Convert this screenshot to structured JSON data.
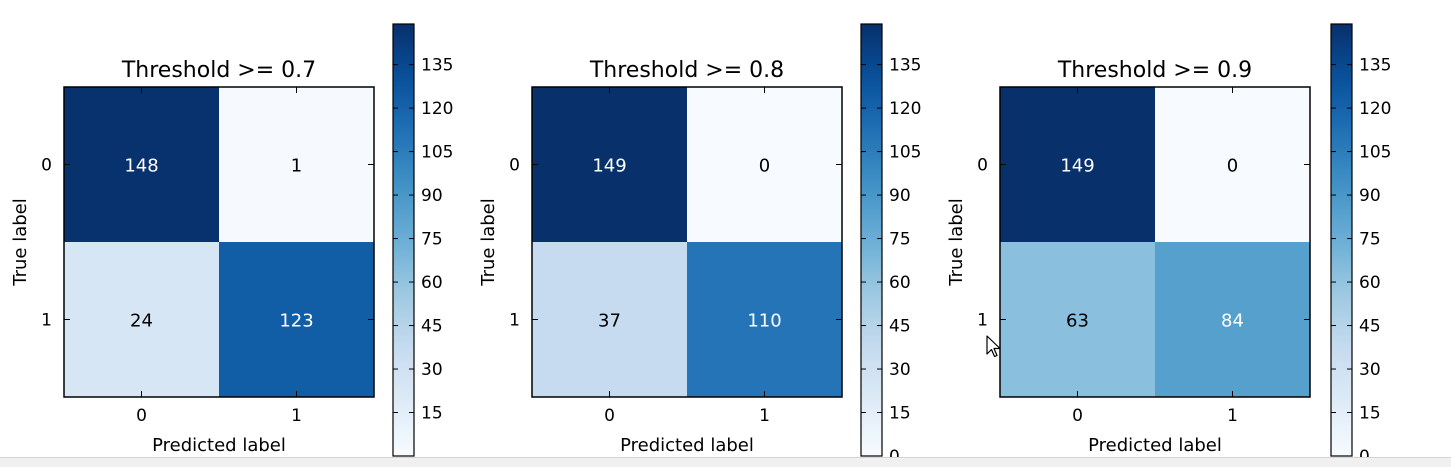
{
  "chart_data": [
    {
      "type": "heatmap",
      "title": "Threshold >= 0.7",
      "xlabel": "Predicted label",
      "ylabel": "True label",
      "x_ticks": [
        "0",
        "1"
      ],
      "y_ticks": [
        "0",
        "1"
      ],
      "values": [
        [
          148,
          1
        ],
        [
          24,
          123
        ]
      ],
      "colormap": "Blues",
      "colorbar": {
        "min": 0,
        "max": 149,
        "ticks": [
          15,
          30,
          45,
          60,
          75,
          90,
          105,
          120,
          135
        ]
      }
    },
    {
      "type": "heatmap",
      "title": "Threshold >= 0.8",
      "xlabel": "Predicted label",
      "ylabel": "True label",
      "x_ticks": [
        "0",
        "1"
      ],
      "y_ticks": [
        "0",
        "1"
      ],
      "values": [
        [
          149,
          0
        ],
        [
          37,
          110
        ]
      ],
      "colormap": "Blues",
      "colorbar": {
        "min": 0,
        "max": 149,
        "ticks": [
          0,
          15,
          30,
          45,
          60,
          75,
          90,
          105,
          120,
          135
        ]
      }
    },
    {
      "type": "heatmap",
      "title": "Threshold >= 0.9",
      "xlabel": "Predicted label",
      "ylabel": "True label",
      "x_ticks": [
        "0",
        "1"
      ],
      "y_ticks": [
        "0",
        "1"
      ],
      "values": [
        [
          149,
          0
        ],
        [
          63,
          84
        ]
      ],
      "colormap": "Blues",
      "colorbar": {
        "min": 0,
        "max": 149,
        "ticks": [
          0,
          15,
          30,
          45,
          60,
          75,
          90,
          105,
          120,
          135
        ]
      }
    }
  ]
}
